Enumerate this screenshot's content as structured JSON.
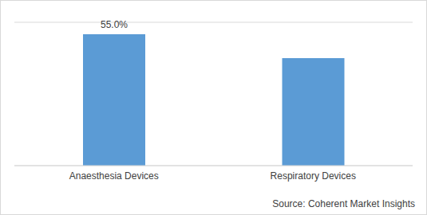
{
  "chart_data": {
    "type": "bar",
    "categories": [
      "Anaesthesia Devices",
      "Respiratory Devices"
    ],
    "values": [
      55,
      45
    ],
    "value_labels": [
      "55.0%",
      null
    ],
    "data_labels": true,
    "color": "#5b9bd5",
    "ylim": [
      0,
      60
    ],
    "yticks": [
      0,
      10,
      20,
      30,
      40,
      50,
      60
    ],
    "grid": true,
    "tick_labels": "x",
    "annotations": [
      "Source: Coherent Market Insights"
    ]
  }
}
